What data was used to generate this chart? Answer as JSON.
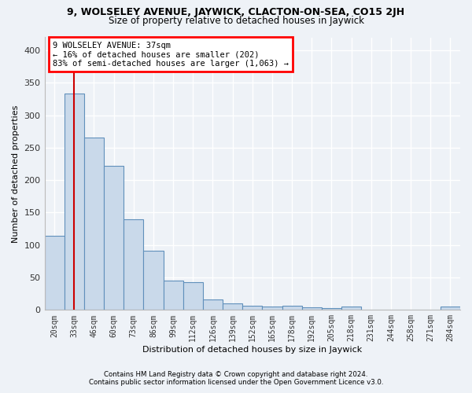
{
  "title1": "9, WOLSELEY AVENUE, JAYWICK, CLACTON-ON-SEA, CO15 2JH",
  "title2": "Size of property relative to detached houses in Jaywick",
  "xlabel": "Distribution of detached houses by size in Jaywick",
  "ylabel": "Number of detached properties",
  "footer1": "Contains HM Land Registry data © Crown copyright and database right 2024.",
  "footer2": "Contains public sector information licensed under the Open Government Licence v3.0.",
  "annotation_line1": "9 WOLSELEY AVENUE: 37sqm",
  "annotation_line2": "← 16% of detached houses are smaller (202)",
  "annotation_line3": "83% of semi-detached houses are larger (1,063) →",
  "bar_labels": [
    "20sqm",
    "33sqm",
    "46sqm",
    "60sqm",
    "73sqm",
    "86sqm",
    "99sqm",
    "112sqm",
    "126sqm",
    "139sqm",
    "152sqm",
    "165sqm",
    "178sqm",
    "192sqm",
    "205sqm",
    "218sqm",
    "231sqm",
    "244sqm",
    "258sqm",
    "271sqm",
    "284sqm"
  ],
  "bar_values": [
    114,
    334,
    265,
    222,
    140,
    91,
    45,
    43,
    16,
    10,
    7,
    5,
    7,
    4,
    3,
    5,
    0,
    0,
    0,
    0,
    5
  ],
  "bar_color": "#c9d9ea",
  "bar_edge_color": "#6090bb",
  "red_line_x": 1.0,
  "ylim": [
    0,
    420
  ],
  "yticks": [
    0,
    50,
    100,
    150,
    200,
    250,
    300,
    350,
    400
  ],
  "bg_color": "#eef2f7",
  "plot_bg_color": "#eef2f7",
  "grid_color": "#ffffff"
}
